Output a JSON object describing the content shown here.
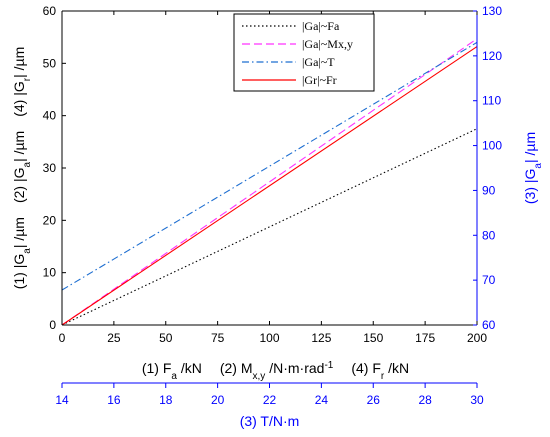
{
  "chart_data": {
    "type": "line",
    "x": [
      0,
      200
    ],
    "xlim": [
      0,
      200
    ],
    "xticks": [
      "0",
      "25",
      "50",
      "75",
      "100",
      "125",
      "150",
      "175",
      "200"
    ],
    "xlabel": {
      "p1": "(1) F",
      "p1sub": "a",
      "p1unit": " /kN",
      "p2": "(2) M",
      "p2sub": "x,y",
      "p2unit": " /N·m·rad",
      "p2sup": "-1",
      "p3": "(4) F",
      "p3sub": "r",
      "p3unit": " /kN"
    },
    "x2lim": [
      14,
      30
    ],
    "x2ticks": [
      "14",
      "16",
      "18",
      "20",
      "22",
      "24",
      "26",
      "28",
      "30"
    ],
    "x2label": "(3) T/N·m",
    "ylim": [
      0,
      60
    ],
    "yticks": [
      "0",
      "10",
      "20",
      "30",
      "40",
      "50",
      "60"
    ],
    "ylabel": {
      "p1": "(1) |G",
      "p1sub": "a",
      "p1unit": "| /µm",
      "p2": "(2) |G",
      "p2sub": "a",
      "p2unit": "| /µm",
      "p3": "(4) |G",
      "p3sub": "r",
      "p3unit": "| /µm"
    },
    "y2lim": [
      60,
      130
    ],
    "y2ticks": [
      "60",
      "70",
      "80",
      "90",
      "100",
      "110",
      "120",
      "130"
    ],
    "y2label": {
      "p1": "(3) |G",
      "p1sub": "a",
      "p1unit": "| /µm"
    },
    "legend_position": "top-center",
    "series": [
      {
        "name": "|Ga|~Fa",
        "axis": "left",
        "values": [
          0,
          37.5
        ],
        "color": "#000000",
        "dash": "1.5,2.5"
      },
      {
        "name": "|Ga|~Mx,y",
        "axis": "left",
        "values": [
          0,
          54.7
        ],
        "color": "#ff33ff",
        "dash": "8,4"
      },
      {
        "name": "|Ga|~T",
        "axis": "right",
        "values": [
          67.8,
          123.0
        ],
        "color": "#1f6fd1",
        "dash": "7,3,1.5,3"
      },
      {
        "name": "|Gr|~Fr",
        "axis": "left",
        "values": [
          0,
          53.2
        ],
        "color": "#ff0000",
        "dash": ""
      }
    ]
  },
  "colors": {
    "axis_left": "#000000",
    "axis_right": "#0000ff"
  }
}
